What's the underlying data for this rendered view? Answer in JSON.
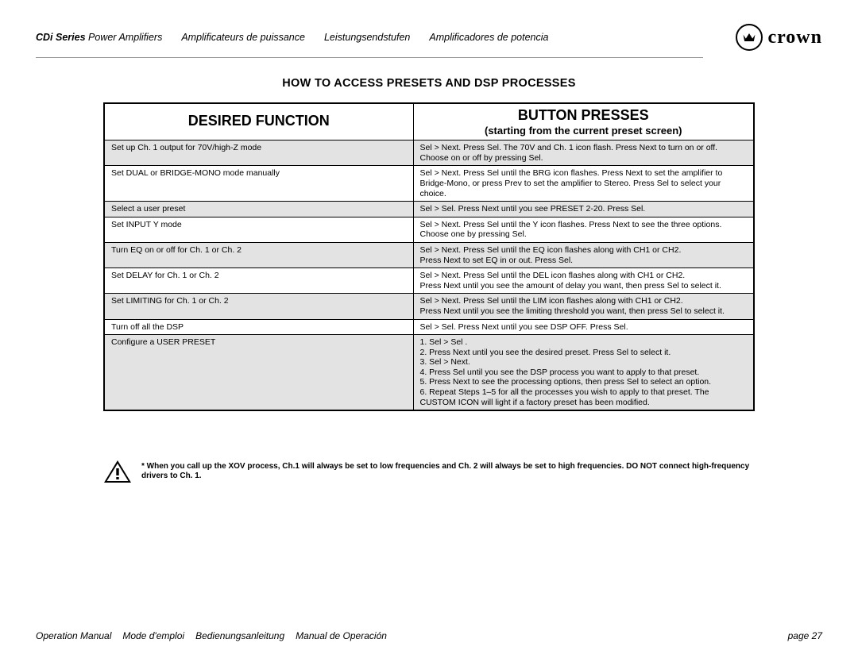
{
  "header": {
    "series": "CDi Series",
    "product_en": "Power Amplifiers",
    "langs": [
      "Amplificateurs de puissance",
      "Leistungsendstufen",
      "Amplificadores de potencia"
    ],
    "brand": "crown"
  },
  "section_title": "HOW TO ACCESS PRESETS AND DSP PROCESSES",
  "table": {
    "col1_header": "DESIRED FUNCTION",
    "col2_header": "BUTTON PRESSES",
    "col2_sub": "(starting from the current preset screen)",
    "rows": [
      {
        "shaded": true,
        "function": "Set up Ch. 1 output for 70V/high-Z mode",
        "presses": "Sel > Next. Press Sel. The 70V and Ch. 1 icon flash. Press Next to turn on or off. Choose on or off by pressing Sel."
      },
      {
        "shaded": false,
        "function": "Set DUAL or BRIDGE-MONO mode manually",
        "presses": "Sel > Next. Press Sel until the BRG icon flashes. Press Next to set the amplifier to Bridge-Mono, or press Prev to set the amplifier to Stereo. Press Sel to select your choice."
      },
      {
        "shaded": true,
        "function": "Select a user preset",
        "presses": "Sel > Sel. Press Next until you see PRESET 2-20. Press Sel."
      },
      {
        "shaded": false,
        "function": "Set INPUT Y mode",
        "presses": "Sel > Next. Press Sel until the Y icon flashes. Press Next to see the three options.\nChoose one by pressing Sel."
      },
      {
        "shaded": true,
        "function": "Turn EQ on or off for Ch. 1 or Ch. 2",
        "presses": "Sel > Next. Press Sel until the EQ icon flashes along with CH1 or CH2.\nPress Next to set EQ in or out. Press Sel."
      },
      {
        "shaded": false,
        "function": "Set DELAY for Ch. 1 or Ch. 2",
        "presses": "Sel > Next. Press Sel until the DEL icon flashes along with CH1 or CH2.\nPress Next until you see the amount of delay you want, then press Sel to select it."
      },
      {
        "shaded": true,
        "function": "Set LIMITING for Ch. 1 or Ch. 2",
        "presses": "Sel > Next. Press Sel until the LIM icon flashes along with CH1 or CH2.\nPress Next until you see the limiting threshold you want, then press Sel to select it."
      },
      {
        "shaded": false,
        "function": "Turn off all the DSP",
        "presses": "Sel > Sel. Press Next until you see DSP OFF. Press Sel."
      },
      {
        "shaded": true,
        "function": "Configure a USER PRESET",
        "presses": "1. Sel > Sel .\n2. Press Next until you see the desired preset. Press Sel to select it.\n3. Sel > Next.\n4. Press Sel until you see the DSP process you want to apply to that preset.\n5. Press Next to see the processing options, then press Sel to select an option.\n6. Repeat Steps 1–5 for all the processes you wish to apply to that preset. The CUSTOM ICON will light if a factory preset has been modified."
      }
    ]
  },
  "warning": "* When you call up the XOV process, Ch.1 will always be set to low frequencies and Ch. 2 will always be set to high frequencies. DO NOT connect high-frequency drivers to Ch. 1.",
  "footer": {
    "labels": [
      "Operation Manual",
      "Mode d'emploi",
      "Bedienungsanleitung",
      "Manual de Operación"
    ],
    "page": "page 27"
  }
}
